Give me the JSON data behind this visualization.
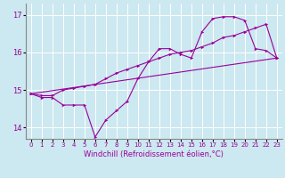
{
  "xlabel": "Windchill (Refroidissement éolien,°C)",
  "xlim": [
    -0.5,
    23.5
  ],
  "ylim": [
    13.7,
    17.3
  ],
  "yticks": [
    14,
    15,
    16,
    17
  ],
  "xticks": [
    0,
    1,
    2,
    3,
    4,
    5,
    6,
    7,
    8,
    9,
    10,
    11,
    12,
    13,
    14,
    15,
    16,
    17,
    18,
    19,
    20,
    21,
    22,
    23
  ],
  "bg_color": "#cce8f0",
  "line_color": "#990099",
  "grid_color": "#ffffff",
  "line1_x": [
    0,
    1,
    2,
    3,
    4,
    5,
    6,
    7,
    8,
    9,
    10,
    11,
    12,
    13,
    14,
    15,
    16,
    17,
    18,
    19,
    20,
    21,
    22,
    23
  ],
  "line1_y": [
    14.9,
    14.8,
    14.8,
    14.6,
    14.6,
    14.6,
    13.75,
    14.2,
    14.45,
    14.7,
    15.3,
    15.75,
    16.1,
    16.1,
    15.95,
    15.85,
    16.55,
    16.9,
    16.95,
    16.95,
    16.85,
    16.1,
    16.05,
    15.85
  ],
  "line2_x": [
    0,
    1,
    2,
    3,
    4,
    5,
    6,
    7,
    8,
    9,
    10,
    11,
    12,
    13,
    14,
    15,
    16,
    17,
    18,
    19,
    20,
    21,
    22,
    23
  ],
  "line2_y": [
    14.9,
    14.85,
    14.85,
    15.0,
    15.05,
    15.1,
    15.15,
    15.3,
    15.45,
    15.55,
    15.65,
    15.75,
    15.85,
    15.95,
    16.0,
    16.05,
    16.15,
    16.25,
    16.4,
    16.45,
    16.55,
    16.65,
    16.75,
    15.85
  ],
  "line3_x": [
    0,
    23
  ],
  "line3_y": [
    14.9,
    15.85
  ]
}
